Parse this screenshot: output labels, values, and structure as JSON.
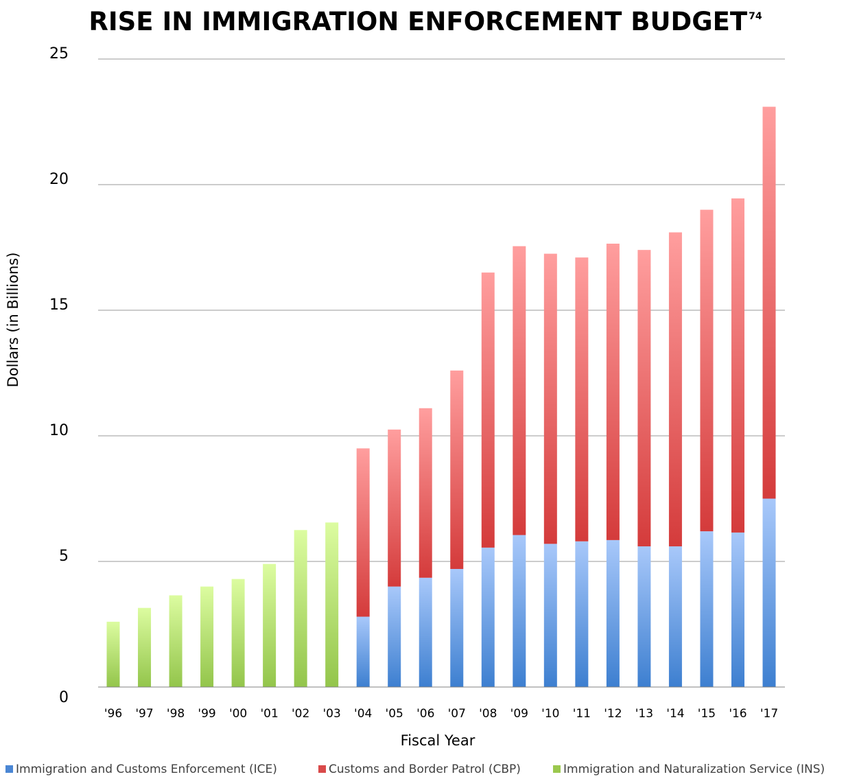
{
  "chart_data": {
    "type": "bar",
    "stacked": true,
    "title": "RISE IN IMMIGRATION ENFORCEMENT BUDGET",
    "title_superscript": "74",
    "xlabel": "Fiscal Year",
    "ylabel": "Dollars (in Billions)",
    "ylim": [
      0,
      25
    ],
    "yticks": [
      "0",
      "5",
      "10",
      "15",
      "20",
      "25"
    ],
    "grid": true,
    "legend_position": "bottom",
    "categories": [
      "'96",
      "'97",
      "'98",
      "'99",
      "'00",
      "'01",
      "'02",
      "'03",
      "'04",
      "'05",
      "'06",
      "'07",
      "'08",
      "'09",
      "'10",
      "'11",
      "'12",
      "'13",
      "'14",
      "'15",
      "'16",
      "'17"
    ],
    "series": [
      {
        "name": "Immigration and Customs Enforcement (ICE)",
        "color": "#4a86d4",
        "values": [
          0,
          0,
          0,
          0,
          0,
          0,
          0,
          0,
          2.8,
          4.0,
          4.35,
          4.7,
          5.55,
          6.05,
          5.7,
          5.8,
          5.85,
          5.6,
          5.6,
          6.2,
          6.15,
          7.5
        ]
      },
      {
        "name": "Customs and Border Patrol (CBP)",
        "color": "#d94a4a",
        "values": [
          0,
          0,
          0,
          0,
          0,
          0,
          0,
          0,
          6.7,
          6.25,
          6.75,
          7.9,
          10.95,
          11.5,
          11.55,
          11.3,
          11.8,
          11.8,
          12.5,
          12.8,
          13.3,
          15.6
        ]
      },
      {
        "name": "Immigration and Naturalization Service (INS)",
        "color": "#9bc84e",
        "values": [
          2.6,
          3.15,
          3.65,
          4.0,
          4.3,
          4.9,
          6.25,
          6.55,
          0,
          0,
          0,
          0,
          0,
          0,
          0,
          0,
          0,
          0,
          0,
          0,
          0,
          0
        ]
      }
    ]
  }
}
